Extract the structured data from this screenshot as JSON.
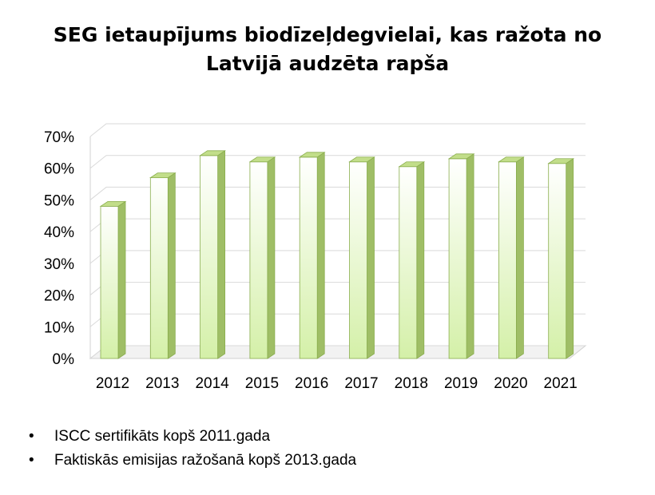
{
  "slide": {
    "title_line1": "SEG ietaupījums biodīzeļdegvielai, kas ražota no",
    "title_line2": "Latvijā audzēta rapša",
    "bullets": [
      "ISCC sertifikāts kopš 2011.gada",
      "Faktiskās emisijas ražošanā kopš 2013.gada"
    ],
    "bullet_symbol": "•"
  },
  "chart_data": {
    "type": "bar",
    "style": "3d-column",
    "categories": [
      "2012",
      "2013",
      "2014",
      "2015",
      "2016",
      "2017",
      "2018",
      "2019",
      "2020",
      "2021"
    ],
    "series": [
      {
        "values": [
          48,
          57,
          64,
          62,
          63.5,
          62,
          60.5,
          63,
          62,
          61.5
        ]
      }
    ],
    "yticks": [
      "0%",
      "10%",
      "20%",
      "30%",
      "40%",
      "50%",
      "60%",
      "70%"
    ],
    "ylim": [
      0,
      70
    ],
    "grid": true,
    "legend": "none",
    "colors": {
      "bar_front_top": "#ffffff",
      "bar_front_bottom": "#d4f0a8",
      "bar_side": "#9fbe66",
      "bar_top": "#c2de8a",
      "bar_edge": "#8aae4e",
      "grid": "#d9d9d9",
      "floor": "#d0d0d0"
    }
  }
}
